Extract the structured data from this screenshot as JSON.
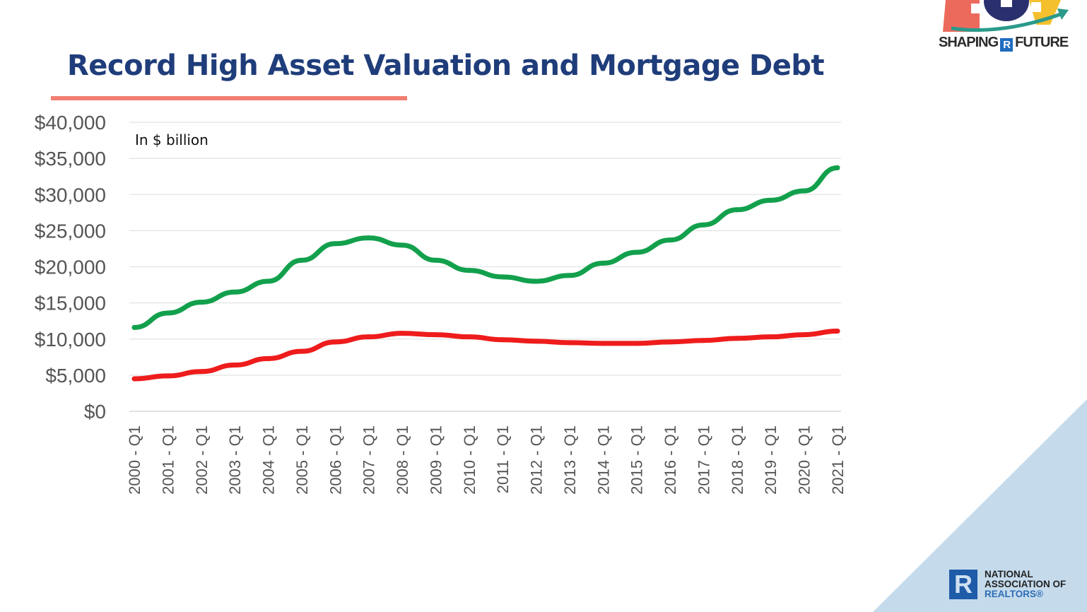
{
  "title": "Record High Asset Valuation and Mortgage Debt",
  "logo_top": {
    "left": "SHAPING",
    "mark": "R",
    "right": "FUTURE"
  },
  "logo_bottom": {
    "line1": "NATIONAL",
    "line2": "ASSOCIATION OF",
    "line3": "REALTORS®"
  },
  "colors": {
    "title": "#1f3d7a",
    "accent_underline": "#f07f72",
    "asset_line": "#12a04c",
    "debt_line": "#ee1c1c",
    "corner": "#c5dbec"
  },
  "chart_data": {
    "type": "line",
    "title": "",
    "annotation": "In $ billion",
    "xlabel": "",
    "ylabel": "",
    "ylim": [
      0,
      40000
    ],
    "yticks": [
      "$0",
      "$5,000",
      "$10,000",
      "$15,000",
      "$20,000",
      "$25,000",
      "$30,000",
      "$35,000",
      "$40,000"
    ],
    "ytick_values": [
      0,
      5000,
      10000,
      15000,
      20000,
      25000,
      30000,
      35000,
      40000
    ],
    "grid": true,
    "categories": [
      "2000 - Q1",
      "2001 - Q1",
      "2002 - Q1",
      "2003 - Q1",
      "2004 - Q1",
      "2005 - Q1",
      "2006 - Q1",
      "2007 - Q1",
      "2008 - Q1",
      "2009 - Q1",
      "2010 - Q1",
      "2011 - Q1",
      "2012 - Q1",
      "2013 - Q1",
      "2014 - Q1",
      "2015 - Q1",
      "2016 - Q1",
      "2017 - Q1",
      "2018 - Q1",
      "2019 - Q1",
      "2020 - Q1",
      "2021 - Q1"
    ],
    "series": [
      {
        "color": "#12a04c",
        "values": [
          11600,
          13600,
          15100,
          16500,
          18000,
          20900,
          23200,
          24000,
          23000,
          20900,
          19500,
          18600,
          18000,
          18800,
          20500,
          22000,
          23700,
          25800,
          27900,
          29200,
          30500,
          33700
        ]
      },
      {
        "color": "#ee1c1c",
        "values": [
          4500,
          4900,
          5500,
          6400,
          7300,
          8300,
          9600,
          10300,
          10800,
          10600,
          10300,
          9900,
          9700,
          9500,
          9400,
          9400,
          9600,
          9800,
          10100,
          10300,
          10600,
          11100
        ]
      }
    ]
  }
}
